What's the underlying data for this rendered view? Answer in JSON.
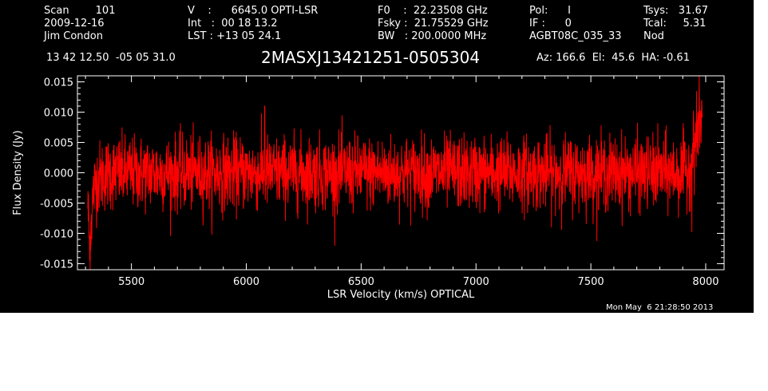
{
  "header": {
    "col1": [
      "Scan        101",
      "2009-12-16",
      "Jim Condon"
    ],
    "col2": [
      "V    :      6645.0 OPTI-LSR",
      "Int   :  00 18 13.2",
      "LST : +13 05 24.1"
    ],
    "col3": [
      "F0    :  22.23508 GHz",
      "Fsky :  21.75529 GHz",
      "BW   : 200.0000 MHz"
    ],
    "col4": [
      "Pol:      I",
      "IF :      0",
      "AGBT08C_035_33"
    ],
    "col5": [
      "Tsys:   31.67",
      "Tcal:     5.31",
      "Nod"
    ],
    "coords": "13 42 12.50  -05 05 31.0",
    "source": "2MASXJ13421251-0505304",
    "pointing": "Az: 166.6  El:  45.6  HA: -0.61",
    "timestamp": "Mon May  6 21:28:50 2013"
  },
  "colors": {
    "background": "#000000",
    "trace": "#ff0000",
    "axes": "#ffffff"
  },
  "chart_data": {
    "type": "line",
    "xlabel": "LSR Velocity (km/s) OPTICAL",
    "ylabel": "Flux Density (Jy)",
    "xlim": [
      5265,
      8080
    ],
    "ylim": [
      -0.016,
      0.016
    ],
    "x_ticks": [
      5500,
      6000,
      6500,
      7000,
      7500,
      8000
    ],
    "y_ticks": [
      -0.015,
      -0.01,
      -0.005,
      0.0,
      0.005,
      0.01,
      0.015
    ],
    "x_tick_labels": [
      "5500",
      "6000",
      "6500",
      "7000",
      "7500",
      "8000"
    ],
    "y_tick_labels": [
      "-0.015",
      "-0.010",
      "-0.005",
      "0.000",
      "0.005",
      "0.010",
      "0.015"
    ],
    "series": [
      {
        "color": "#ff0000",
        "x": [
          5310,
          5318,
          5325,
          5335,
          5350,
          5400,
          5500,
          5600,
          5700,
          5800,
          5900,
          6000,
          6100,
          6200,
          6300,
          6400,
          6500,
          6600,
          6700,
          6800,
          6900,
          7000,
          7100,
          7200,
          7300,
          7400,
          7500,
          7600,
          7700,
          7800,
          7900,
          7930,
          7945,
          7960,
          7975,
          7985
        ],
        "y": [
          -0.005,
          -0.012,
          -0.008,
          -0.003,
          -0.001,
          0.0,
          0.0,
          0.0,
          0.0,
          0.0,
          0.0,
          0.0,
          0.0,
          0.0,
          0.0,
          0.0,
          0.0,
          0.0,
          0.0,
          0.0,
          0.0,
          0.0,
          0.0,
          0.0,
          0.0,
          0.0,
          0.0,
          0.0,
          0.0,
          0.0,
          0.0,
          0.001,
          0.003,
          0.006,
          0.008,
          0.01
        ],
        "noise_sigma": 0.003,
        "x_end": 7985,
        "peaks": [
          {
            "x": 5318,
            "y": -0.0145
          },
          {
            "x": 6080,
            "y": 0.011
          },
          {
            "x": 7960,
            "y": 0.0135
          },
          {
            "x": 7940,
            "y": -0.0098
          }
        ]
      }
    ]
  }
}
